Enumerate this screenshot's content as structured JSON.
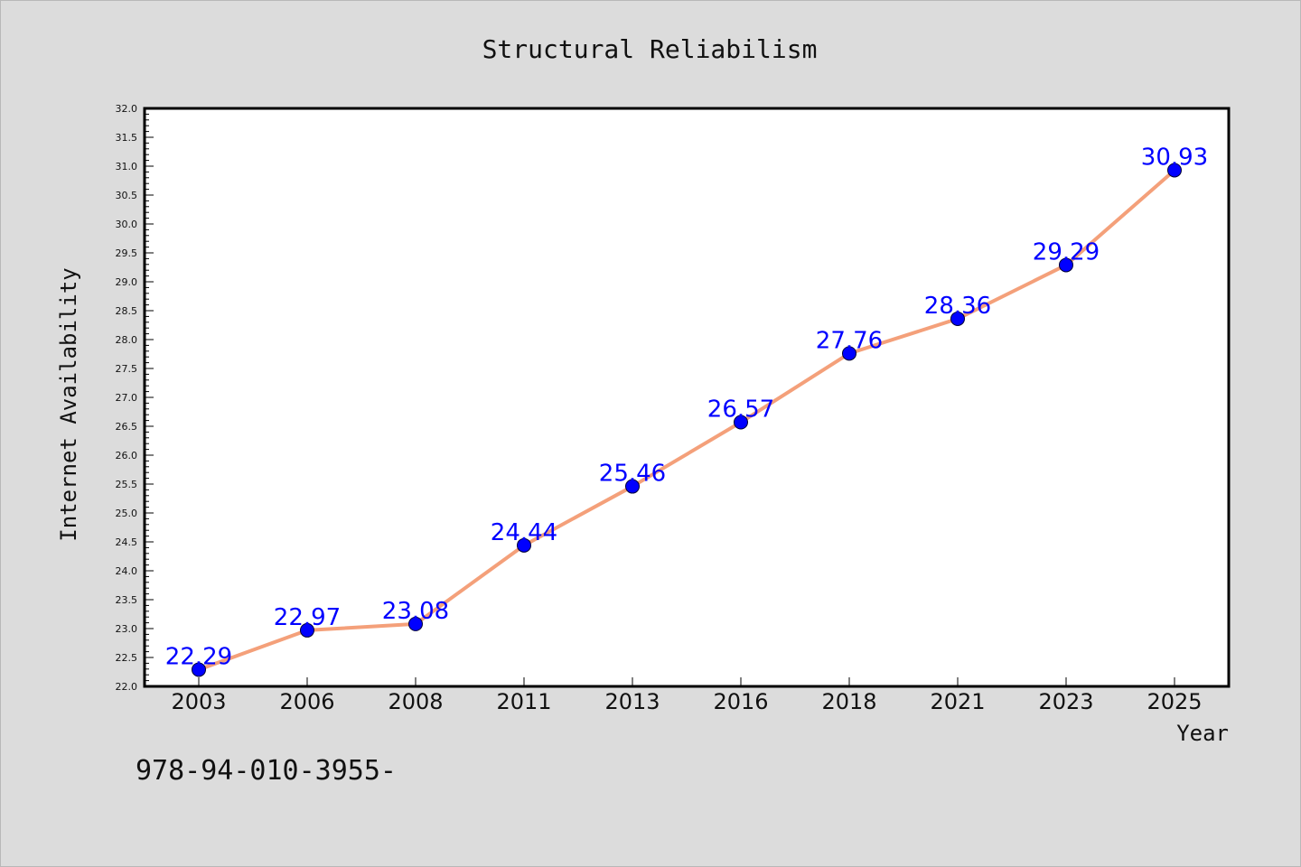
{
  "chart_data": {
    "type": "line",
    "title": "Structural Reliabilism",
    "xlabel": "Year",
    "ylabel": "Internet Availability",
    "categories": [
      "2003",
      "2006",
      "2008",
      "2011",
      "2013",
      "2016",
      "2018",
      "2021",
      "2023",
      "2025"
    ],
    "series": [
      {
        "values": [
          22.29,
          22.97,
          23.08,
          24.44,
          25.46,
          26.57,
          27.76,
          28.36,
          29.29,
          30.93
        ],
        "labels": [
          "22.29",
          "22.97",
          "23.08",
          "24.44",
          "25.46",
          "26.57",
          "27.76",
          "28.36",
          "29.29",
          "30.93"
        ],
        "line_color": "#f4a07a",
        "marker_color": "#0000ff"
      }
    ],
    "ylim": [
      22.0,
      32.0
    ],
    "yticks": [
      "22.0",
      "22.5",
      "23.0",
      "23.5",
      "24.0",
      "24.5",
      "25.0",
      "25.5",
      "26.0",
      "26.5",
      "27.0",
      "27.5",
      "28.0",
      "28.5",
      "29.0",
      "29.5",
      "30.0",
      "30.5",
      "31.0",
      "31.5",
      "32.0"
    ],
    "grid": false,
    "legend": "none"
  },
  "footnote": "978-94-010-3955-",
  "colors": {
    "background": "#dcdcdc",
    "plot_background": "#ffffff",
    "line": "#f4a07a",
    "marker": "#0000ff",
    "data_label": "#0000ff"
  }
}
